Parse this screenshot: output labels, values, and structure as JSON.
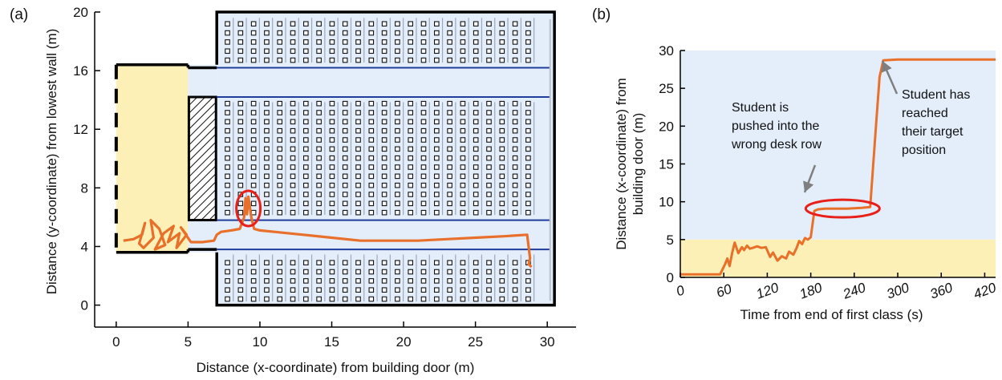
{
  "panels": {
    "a": {
      "label": "(a)"
    },
    "b": {
      "label": "(b)"
    }
  },
  "colors": {
    "trajectory": "#e8702a",
    "highlight": "#e8201a",
    "room_fill": "#e4eefb",
    "entry_fill": "#fdf0b6",
    "aisle_line": "#1f3d9a",
    "desk_line": "#9aa8c0",
    "wall": "#000000",
    "band_top": "#e4eefb",
    "band_bottom": "#fdf0b6",
    "arrow": "#7f7f7f"
  },
  "chart_data": [
    {
      "type": "line",
      "panel": "(a)",
      "xlabel": "Distance (x-coordinate) from building door (m)",
      "ylabel": "Distance (y-coordinate) from lowest wall (m)",
      "xlim": [
        -1.5,
        32
      ],
      "ylim": [
        -1.5,
        20
      ],
      "xticks": [
        0,
        5,
        10,
        15,
        20,
        25,
        30
      ],
      "yticks": [
        0,
        4,
        8,
        12,
        16,
        20
      ],
      "room": {
        "entry_area": {
          "x": [
            0,
            5
          ],
          "y": [
            3.6,
            16.4
          ]
        },
        "main_room": {
          "x": [
            7,
            30.5
          ],
          "y": [
            0,
            20
          ]
        },
        "stair_block": {
          "x": [
            5,
            7
          ],
          "y": [
            5.8,
            14.2
          ]
        },
        "aisles_y": [
          3.8,
          5.8,
          14.2,
          16.2
        ]
      },
      "series": [
        {
          "x": [
            0.5,
            1.2,
            1.8,
            2.0,
            1.6,
            1.9,
            2.6,
            2.4,
            3.0,
            3.4,
            2.7,
            3.3,
            4.0,
            3.6,
            4.4,
            4.2,
            4.9,
            4.5,
            5.2,
            6.0,
            6.8,
            7.0,
            7.3,
            8.0,
            8.6,
            8.9,
            9.0,
            9.1,
            9.2,
            9.4,
            9.6,
            10.0,
            11.0,
            13.0,
            15.0,
            17.0,
            19.0,
            21.0,
            23.0,
            25.0,
            27.0,
            28.6,
            28.8,
            28.7,
            28.9
          ],
          "y": [
            4.4,
            4.5,
            4.8,
            5.6,
            4.2,
            3.9,
            4.6,
            5.8,
            5.2,
            4.1,
            3.8,
            4.9,
            5.4,
            4.3,
            4.9,
            3.9,
            4.8,
            5.3,
            4.3,
            4.3,
            4.4,
            4.8,
            5.0,
            5.1,
            5.2,
            6.0,
            7.3,
            6.2,
            7.4,
            6.0,
            5.2,
            5.1,
            5.0,
            4.8,
            4.6,
            4.4,
            4.4,
            4.4,
            4.5,
            4.6,
            4.7,
            4.8,
            3.2,
            2.8,
            2.6
          ]
        }
      ],
      "highlight": {
        "x": 9.2,
        "y": 6.6
      }
    },
    {
      "type": "line",
      "panel": "(b)",
      "xlabel": "Time from end of first class (s)",
      "ylabel": "Distance (x-coordinate) from building door (m)",
      "xlim": [
        0,
        435
      ],
      "ylim": [
        0,
        30
      ],
      "xticks": [
        0,
        60,
        120,
        180,
        240,
        300,
        360,
        420
      ],
      "yticks": [
        0,
        5,
        10,
        15,
        20,
        25,
        30
      ],
      "band_boundary": 5,
      "series": [
        {
          "x": [
            0,
            55,
            62,
            65,
            68,
            72,
            75,
            80,
            85,
            88,
            92,
            96,
            100,
            106,
            112,
            118,
            124,
            128,
            134,
            140,
            146,
            150,
            156,
            160,
            164,
            168,
            172,
            176,
            180,
            185,
            190,
            200,
            215,
            230,
            250,
            262,
            270,
            275,
            280,
            300,
            340,
            380,
            420,
            435
          ],
          "y": [
            0.4,
            0.4,
            1.8,
            2.5,
            1.5,
            3.4,
            4.6,
            3.2,
            4.0,
            3.6,
            4.2,
            3.8,
            3.9,
            4.1,
            3.9,
            4.0,
            2.7,
            3.3,
            2.2,
            2.8,
            2.5,
            3.4,
            3.0,
            3.8,
            4.8,
            4.4,
            5.2,
            5.0,
            5.3,
            8.8,
            9.0,
            9.1,
            9.1,
            9.1,
            9.2,
            9.3,
            20.0,
            26.5,
            28.7,
            28.8,
            28.8,
            28.8,
            28.8,
            28.8
          ]
        }
      ],
      "annotations": [
        {
          "text": [
            "Student is",
            "pushed into the",
            "wrong desk row"
          ]
        },
        {
          "text": [
            "Student has",
            "reached",
            "their target",
            "position"
          ]
        }
      ]
    }
  ]
}
